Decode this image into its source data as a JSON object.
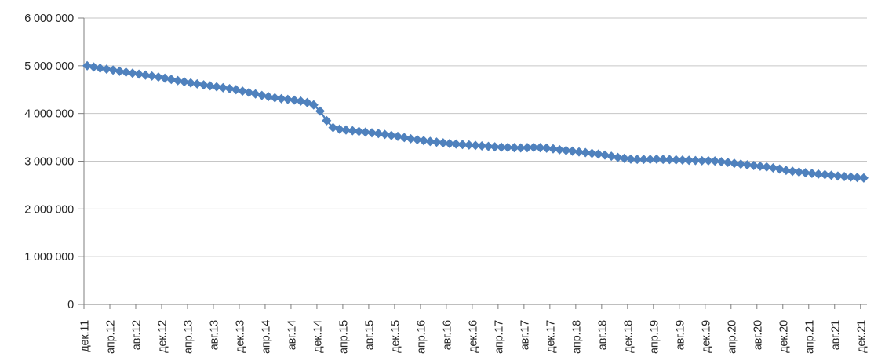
{
  "chart_data": {
    "type": "line",
    "marker": "diamond",
    "title": "",
    "xlabel": "",
    "ylabel": "",
    "legend": "none",
    "grid": "horizontal",
    "colors": {
      "series": "#4F81BD",
      "gridline": "#C6C6C6",
      "axis": "#7F7F7F",
      "text": "#262626",
      "background": "#FFFFFF"
    },
    "y_axis": {
      "min": 0,
      "max": 6000000,
      "step": 1000000,
      "tick_labels": [
        "0",
        "1 000 000",
        "2 000 000",
        "3 000 000",
        "4 000 000",
        "5 000 000",
        "6 000 000"
      ]
    },
    "x_axis": {
      "label_rotation_deg": -90,
      "label_interval_months": 4,
      "tick_labels": [
        "дек.11",
        "апр.12",
        "авг.12",
        "дек.12",
        "апр.13",
        "авг.13",
        "дек.13",
        "апр.14",
        "авг.14",
        "дек.14",
        "апр.15",
        "авг.15",
        "дек.15",
        "апр.16",
        "авг.16",
        "дек.16",
        "апр.17",
        "авг.17",
        "дек.17",
        "апр.18",
        "авг.18",
        "дек.18",
        "апр.19",
        "авг.19",
        "дек.19",
        "апр.20",
        "авг.20",
        "дек.20",
        "апр.21",
        "авг.21",
        "дек.21"
      ]
    },
    "months": [
      "дек.11",
      "янв.12",
      "фев.12",
      "мар.12",
      "апр.12",
      "май.12",
      "июн.12",
      "июл.12",
      "авг.12",
      "сен.12",
      "окт.12",
      "ноя.12",
      "дек.12",
      "янв.13",
      "фев.13",
      "мар.13",
      "апр.13",
      "май.13",
      "июн.13",
      "июл.13",
      "авг.13",
      "сен.13",
      "окт.13",
      "ноя.13",
      "дек.13",
      "янв.14",
      "фев.14",
      "мар.14",
      "апр.14",
      "май.14",
      "июн.14",
      "июл.14",
      "авг.14",
      "сен.14",
      "окт.14",
      "ноя.14",
      "дек.14",
      "янв.15",
      "фев.15",
      "мар.15",
      "апр.15",
      "май.15",
      "июн.15",
      "июл.15",
      "авг.15",
      "сен.15",
      "окт.15",
      "ноя.15",
      "дек.15",
      "янв.16",
      "фев.16",
      "мар.16",
      "апр.16",
      "май.16",
      "июн.16",
      "июл.16",
      "авг.16",
      "сен.16",
      "окт.16",
      "ноя.16",
      "дек.16",
      "янв.17",
      "фев.17",
      "мар.17",
      "апр.17",
      "май.17",
      "июн.17",
      "июл.17",
      "авг.17",
      "сен.17",
      "окт.17",
      "ноя.17",
      "дек.17",
      "янв.18",
      "фев.18",
      "мар.18",
      "апр.18",
      "май.18",
      "июн.18",
      "июл.18",
      "авг.18",
      "сен.18",
      "окт.18",
      "ноя.18",
      "дек.18",
      "янв.19",
      "фев.19",
      "мар.19",
      "апр.19",
      "май.19",
      "июн.19",
      "июл.19",
      "авг.19",
      "сен.19",
      "окт.19",
      "ноя.19",
      "дек.19",
      "янв.20",
      "фев.20",
      "мар.20",
      "апр.20",
      "май.20",
      "июн.20",
      "июл.20",
      "авг.20",
      "сен.20",
      "окт.20",
      "ноя.20",
      "дек.20",
      "янв.21",
      "фев.21",
      "мар.21",
      "апр.21",
      "май.21",
      "июн.21",
      "июл.21",
      "авг.21",
      "сен.21",
      "окт.21",
      "ноя.21",
      "дек.21"
    ],
    "values": [
      5000000,
      4975000,
      4950000,
      4930000,
      4910000,
      4885000,
      4865000,
      4845000,
      4825000,
      4805000,
      4785000,
      4765000,
      4740000,
      4715000,
      4690000,
      4665000,
      4640000,
      4620000,
      4600000,
      4580000,
      4560000,
      4540000,
      4520000,
      4500000,
      4470000,
      4440000,
      4410000,
      4380000,
      4355000,
      4330000,
      4310000,
      4295000,
      4280000,
      4260000,
      4230000,
      4180000,
      4050000,
      3850000,
      3705000,
      3670000,
      3655000,
      3640000,
      3625000,
      3610000,
      3595000,
      3580000,
      3560000,
      3540000,
      3520000,
      3495000,
      3470000,
      3450000,
      3430000,
      3415000,
      3400000,
      3385000,
      3370000,
      3360000,
      3350000,
      3340000,
      3330000,
      3320000,
      3310000,
      3300000,
      3295000,
      3290000,
      3285000,
      3280000,
      3285000,
      3290000,
      3285000,
      3275000,
      3260000,
      3240000,
      3225000,
      3210000,
      3195000,
      3180000,
      3165000,
      3150000,
      3130000,
      3105000,
      3080000,
      3060000,
      3045000,
      3040000,
      3040000,
      3040000,
      3045000,
      3040000,
      3035000,
      3030000,
      3025000,
      3020000,
      3015000,
      3010000,
      3010000,
      3005000,
      2990000,
      2975000,
      2955000,
      2940000,
      2925000,
      2910000,
      2895000,
      2880000,
      2860000,
      2835000,
      2810000,
      2790000,
      2775000,
      2760000,
      2745000,
      2730000,
      2720000,
      2705000,
      2690000,
      2680000,
      2670000,
      2660000,
      2650000
    ]
  }
}
